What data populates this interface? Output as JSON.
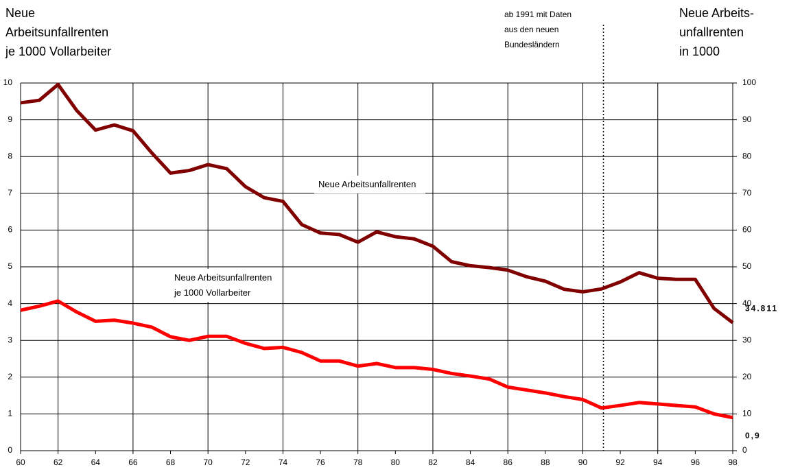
{
  "chart_data": {
    "type": "line",
    "ylabel": [
      "Neue",
      "Arbeitsunfallrenten",
      "je 1000 Vollarbeiter"
    ],
    "y2label": [
      "Neue Arbeits-",
      "unfallrenten",
      "in 1000"
    ],
    "annotation": {
      "text": [
        "ab 1991 mit Daten",
        "aus den neuen",
        "Bundesländern"
      ],
      "x": 91.1
    },
    "x": [
      60,
      61,
      62,
      63,
      64,
      65,
      66,
      67,
      68,
      69,
      70,
      71,
      72,
      73,
      74,
      75,
      76,
      77,
      78,
      79,
      80,
      81,
      82,
      83,
      84,
      85,
      86,
      87,
      88,
      89,
      90,
      91,
      92,
      93,
      94,
      95,
      96,
      97,
      98
    ],
    "xlim": [
      60,
      98
    ],
    "xticks": [
      60,
      62,
      64,
      66,
      68,
      70,
      72,
      74,
      76,
      78,
      80,
      82,
      84,
      86,
      88,
      90,
      92,
      94,
      96,
      98
    ],
    "ylim": [
      0,
      10
    ],
    "yticks": [
      0,
      1,
      2,
      3,
      4,
      5,
      6,
      7,
      8,
      9,
      10
    ],
    "y2lim": [
      0,
      100
    ],
    "y2ticks": [
      0,
      10,
      20,
      30,
      40,
      50,
      60,
      70,
      80,
      90,
      100
    ],
    "grid": true,
    "series": [
      {
        "name": "Neue Arbeitsunfallrenten",
        "color": "#800000",
        "axis": "y2",
        "values": [
          94.6,
          95.3,
          99.6,
          92.5,
          87.2,
          88.6,
          87.0,
          81.0,
          75.5,
          76.2,
          77.8,
          76.7,
          71.8,
          68.8,
          67.8,
          61.5,
          59.2,
          58.8,
          56.7,
          59.5,
          58.2,
          57.6,
          55.6,
          51.4,
          50.3,
          49.8,
          49.1,
          47.3,
          46.1,
          43.9,
          43.2,
          44.0,
          45.9,
          48.4,
          46.9,
          46.6,
          46.6,
          38.7,
          34.811
        ],
        "value_labels": [
          null,
          null,
          null,
          null,
          null,
          null,
          null,
          null,
          null,
          null,
          null,
          null,
          null,
          null,
          null,
          null,
          null,
          null,
          null,
          null,
          null,
          null,
          null,
          null,
          null,
          null,
          null,
          null,
          null,
          null,
          null,
          null,
          null,
          null,
          null,
          null,
          null,
          null,
          "34.811"
        ]
      },
      {
        "name": "Neue Arbeitsunfallrenten je 1000 Vollarbeiter",
        "color": "#ff0000",
        "values": [
          3.82,
          3.93,
          4.07,
          3.77,
          3.52,
          3.55,
          3.47,
          3.36,
          3.1,
          3.0,
          3.11,
          3.11,
          2.92,
          2.78,
          2.81,
          2.67,
          2.44,
          2.44,
          2.3,
          2.37,
          2.26,
          2.26,
          2.21,
          2.1,
          2.03,
          1.95,
          1.73,
          1.65,
          1.57,
          1.47,
          1.39,
          1.16,
          1.23,
          1.31,
          1.27,
          1.23,
          1.19,
          1.0,
          0.9
        ],
        "value_labels": [
          null,
          null,
          null,
          null,
          null,
          null,
          null,
          null,
          null,
          null,
          null,
          null,
          null,
          null,
          null,
          null,
          null,
          null,
          null,
          null,
          null,
          null,
          null,
          null,
          null,
          null,
          null,
          null,
          null,
          null,
          null,
          null,
          null,
          null,
          null,
          null,
          null,
          null,
          "0,9"
        ]
      }
    ]
  }
}
